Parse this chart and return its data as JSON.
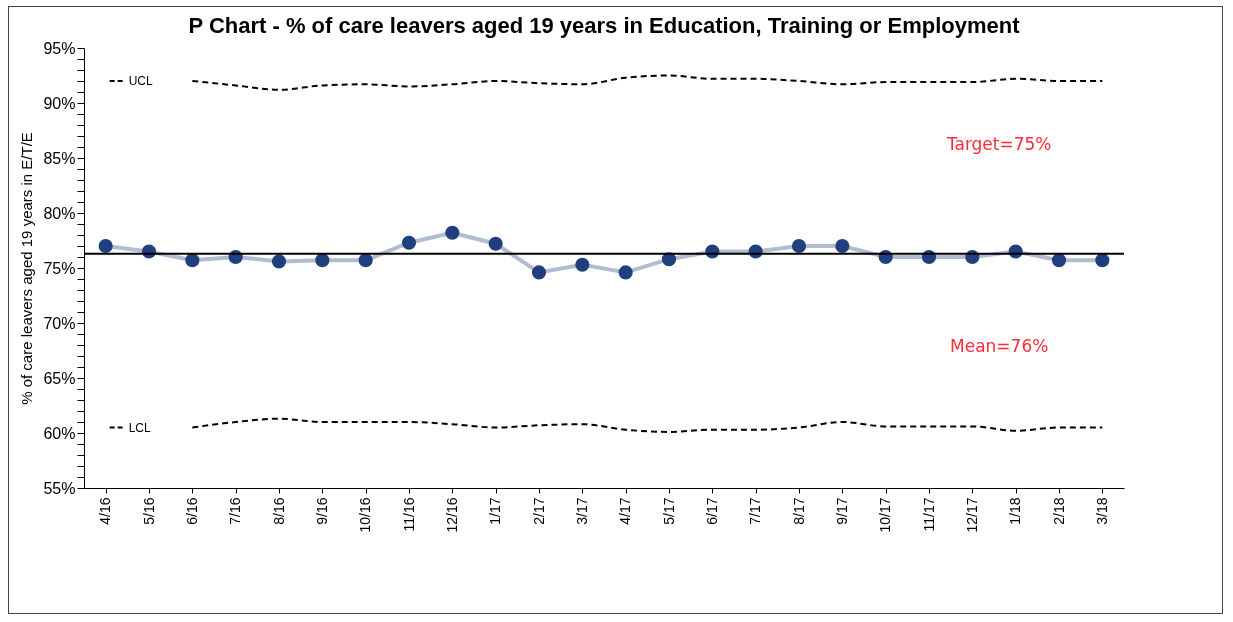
{
  "chart_data": {
    "type": "line",
    "title": "P Chart - % of care leavers aged 19 years in Education, Training or Employment",
    "ylabel": "% of care leavers aged 19 years in E/T/E",
    "categories": [
      "4/16",
      "5/16",
      "6/16",
      "7/16",
      "8/16",
      "9/16",
      "10/16",
      "11/16",
      "12/16",
      "1/17",
      "2/17",
      "3/17",
      "4/17",
      "5/17",
      "6/17",
      "7/17",
      "8/17",
      "9/17",
      "10/17",
      "11/17",
      "12/17",
      "1/18",
      "2/18",
      "3/18"
    ],
    "series": [
      {
        "color": "#1f3f7f",
        "marker": "circle",
        "line_style": "solid",
        "values": [
          77.0,
          76.5,
          75.7,
          76.0,
          75.6,
          75.7,
          75.7,
          77.3,
          78.2,
          77.2,
          74.6,
          75.3,
          74.6,
          75.8,
          76.5,
          76.5,
          77.0,
          77.0,
          76.0,
          76.0,
          76.0,
          76.5,
          75.7,
          75.7
        ]
      },
      {
        "name": "UCL",
        "color": "#000000",
        "line_style": "dashed",
        "values": [
          null,
          null,
          92.0,
          91.6,
          91.2,
          91.6,
          91.7,
          91.5,
          91.7,
          92.0,
          91.8,
          91.7,
          92.3,
          92.5,
          92.2,
          92.2,
          92.0,
          91.7,
          91.9,
          91.9,
          91.9,
          92.2,
          92.0,
          92.0
        ]
      },
      {
        "name": "LCL",
        "color": "#000000",
        "line_style": "dashed",
        "values": [
          null,
          null,
          60.5,
          61.0,
          61.3,
          61.0,
          61.0,
          61.0,
          60.8,
          60.5,
          60.7,
          60.8,
          60.3,
          60.1,
          60.3,
          60.3,
          60.5,
          61.0,
          60.6,
          60.6,
          60.6,
          60.2,
          60.5,
          60.5
        ]
      }
    ],
    "ref_lines": [
      {
        "axis": "y",
        "value": 76.3,
        "color": "#000000",
        "line_style": "solid"
      }
    ],
    "annotations": [
      "Target=75%",
      "Mean=76%"
    ],
    "ylim": [
      55,
      95
    ],
    "yticks": [
      {
        "value": 55,
        "label": "55%"
      },
      {
        "value": 56,
        "label": null
      },
      {
        "value": 57,
        "label": null
      },
      {
        "value": 58,
        "label": null
      },
      {
        "value": 59,
        "label": null
      },
      {
        "value": 60,
        "label": "60%"
      },
      {
        "value": 61,
        "label": null
      },
      {
        "value": 62,
        "label": null
      },
      {
        "value": 63,
        "label": null
      },
      {
        "value": 64,
        "label": null
      },
      {
        "value": 65,
        "label": "65%"
      },
      {
        "value": 66,
        "label": null
      },
      {
        "value": 67,
        "label": null
      },
      {
        "value": 68,
        "label": null
      },
      {
        "value": 69,
        "label": null
      },
      {
        "value": 70,
        "label": "70%"
      },
      {
        "value": 71,
        "label": null
      },
      {
        "value": 72,
        "label": null
      },
      {
        "value": 73,
        "label": null
      },
      {
        "value": 74,
        "label": null
      },
      {
        "value": 75,
        "label": "75%"
      },
      {
        "value": 76,
        "label": null
      },
      {
        "value": 77,
        "label": null
      },
      {
        "value": 78,
        "label": null
      },
      {
        "value": 79,
        "label": null
      },
      {
        "value": 80,
        "label": "80%"
      },
      {
        "value": 81,
        "label": null
      },
      {
        "value": 82,
        "label": null
      },
      {
        "value": 83,
        "label": null
      },
      {
        "value": 84,
        "label": null
      },
      {
        "value": 85,
        "label": "85%"
      },
      {
        "value": 86,
        "label": null
      },
      {
        "value": 87,
        "label": null
      },
      {
        "value": 88,
        "label": null
      },
      {
        "value": 89,
        "label": null
      },
      {
        "value": 90,
        "label": "90%"
      },
      {
        "value": 91,
        "label": null
      },
      {
        "value": 92,
        "label": null
      },
      {
        "value": 93,
        "label": null
      },
      {
        "value": 94,
        "label": null
      },
      {
        "value": 95,
        "label": "95%"
      }
    ],
    "grid": false,
    "legend": "left"
  }
}
